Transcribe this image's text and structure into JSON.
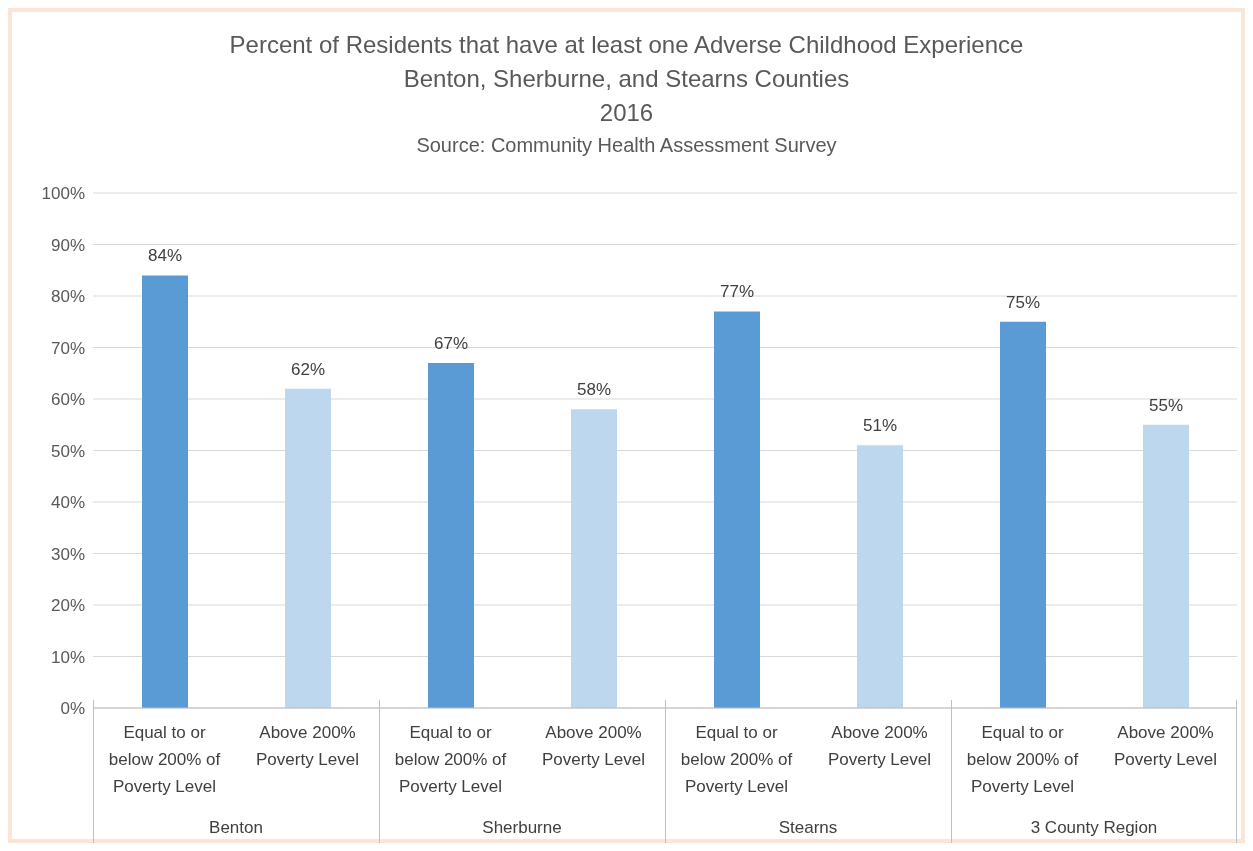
{
  "chart_data": {
    "type": "bar",
    "title": "Percent of Residents that have at least one Adverse Childhood Experience",
    "subtitle": "Benton, Sherburne, and Stearns Counties\n2016",
    "categories": [
      "Equal to or below 200% of Poverty Level",
      "Above 200% Poverty Level",
      "Equal to or below 200% of Poverty Level",
      "Above 200% Poverty Level",
      "Equal to or below 200% of Poverty Level",
      "Above 200% Poverty Level",
      "Equal to or below 200% of Poverty Level",
      "Above 200% Poverty Level"
    ],
    "values": [
      84,
      62,
      67,
      58,
      77,
      51,
      75,
      55
    ],
    "colors": [
      "#5b9bd5",
      "#bdd7ee",
      "#5b9bd5",
      "#bdd7ee",
      "#5b9bd5",
      "#bdd7ee",
      "#5b9bd5",
      "#bdd7ee"
    ],
    "value_labels": [
      "84%",
      "62%",
      "67%",
      "58%",
      "77%",
      "51%",
      "75%",
      "55%"
    ],
    "ylim": [
      0,
      100
    ],
    "yticks": [
      {
        "value": 0,
        "label": "0%"
      },
      {
        "value": 10,
        "label": "10%"
      },
      {
        "value": 20,
        "label": "20%"
      },
      {
        "value": 30,
        "label": "30%"
      },
      {
        "value": 40,
        "label": "40%"
      },
      {
        "value": 50,
        "label": "50%"
      },
      {
        "value": 60,
        "label": "60%"
      },
      {
        "value": 70,
        "label": "70%"
      },
      {
        "value": 80,
        "label": "80%"
      },
      {
        "value": 90,
        "label": "90%"
      },
      {
        "value": 100,
        "label": "100%"
      }
    ],
    "grid": "y",
    "legend": false,
    "annotations": [
      "Source: Community Health Assessment Survey",
      "Benton",
      "Sherburne",
      "Stearns",
      "3 County Region"
    ]
  }
}
